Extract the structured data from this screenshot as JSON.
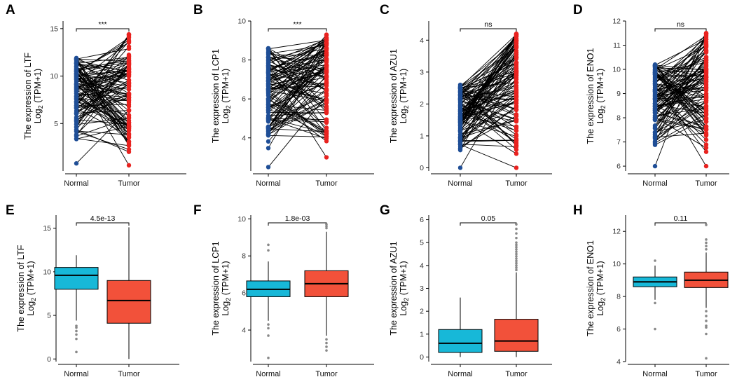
{
  "colors": {
    "normal_dot": "#1f4e96",
    "tumor_dot": "#e8221f",
    "normal_box": "#17b8d8",
    "tumor_box": "#f2513a",
    "outlier": "#888888",
    "line": "#000000"
  },
  "chart_data": [
    {
      "panel": "A",
      "type": "paired-dot",
      "gene": "LTF",
      "ylabel_main": "The expression of LTF",
      "ylabel_sub_pre": "Log",
      "ylabel_sub_base": "2",
      "ylabel_sub_post": " (TPM+1)",
      "categories": [
        "Normal",
        "Tumor"
      ],
      "ylim": [
        0,
        15.8
      ],
      "yticks": [
        5,
        10,
        15
      ],
      "significance": "***",
      "normal_range": [
        0.8,
        11.9
      ],
      "tumor_range": [
        0.6,
        14.4
      ],
      "n_pairs": 110,
      "seed": 11
    },
    {
      "panel": "B",
      "type": "paired-dot",
      "gene": "LCP1",
      "ylabel_main": "The expression of LCP1",
      "ylabel_sub_pre": "Log",
      "ylabel_sub_base": "2",
      "ylabel_sub_post": " (TPM+1)",
      "categories": [
        "Normal",
        "Tumor"
      ],
      "ylim": [
        2.3,
        10
      ],
      "yticks": [
        4,
        6,
        8,
        10
      ],
      "significance": "***",
      "normal_range": [
        2.5,
        8.6
      ],
      "tumor_range": [
        3.0,
        9.3
      ],
      "n_pairs": 110,
      "seed": 23
    },
    {
      "panel": "C",
      "type": "paired-dot",
      "gene": "AZU1",
      "ylabel_main": "The expression of AZU1",
      "ylabel_sub_pre": "Log",
      "ylabel_sub_base": "2",
      "ylabel_sub_post": " (TPM+1)",
      "categories": [
        "Normal",
        "Tumor"
      ],
      "ylim": [
        -0.1,
        4.6
      ],
      "yticks": [
        0,
        1,
        2,
        3,
        4
      ],
      "significance": "ns",
      "normal_range": [
        0.0,
        2.6
      ],
      "tumor_range": [
        0.0,
        4.2
      ],
      "n_pairs": 110,
      "seed": 37
    },
    {
      "panel": "D",
      "type": "paired-dot",
      "gene": "ENO1",
      "ylabel_main": "The expression of ENO1",
      "ylabel_sub_pre": "Log",
      "ylabel_sub_base": "2",
      "ylabel_sub_post": " (TPM+1)",
      "categories": [
        "Normal",
        "Tumor"
      ],
      "ylim": [
        5.8,
        12
      ],
      "yticks": [
        6,
        7,
        8,
        9,
        10,
        11,
        12
      ],
      "significance": "ns",
      "normal_range": [
        6.0,
        10.2
      ],
      "tumor_range": [
        6.0,
        11.5
      ],
      "n_pairs": 110,
      "seed": 41
    },
    {
      "panel": "E",
      "type": "box",
      "gene": "LTF",
      "ylabel_main": "The expression of LTF",
      "ylabel_sub_pre": "Log",
      "ylabel_sub_base": "2",
      "ylabel_sub_post": " (TPM+1)",
      "categories": [
        "Normal",
        "Tumor"
      ],
      "ylim": [
        -0.3,
        16.5
      ],
      "yticks": [
        0,
        5,
        10,
        15
      ],
      "significance": "4.5e-13",
      "boxes": [
        {
          "q1": 8.0,
          "median": 9.6,
          "q3": 10.5,
          "whisker_low": 4.4,
          "whisker_high": 11.9,
          "outliers": [
            3.8,
            3.6,
            3.2,
            2.8,
            2.3,
            0.8
          ]
        },
        {
          "q1": 4.1,
          "median": 6.7,
          "q3": 9.0,
          "whisker_low": 0.0,
          "whisker_high": 15.1,
          "outliers": []
        }
      ]
    },
    {
      "panel": "F",
      "type": "box",
      "gene": "LCP1",
      "ylabel_main": "The expression of LCP1",
      "ylabel_sub_pre": "Log",
      "ylabel_sub_base": "2",
      "ylabel_sub_post": " (TPM+1)",
      "categories": [
        "Normal",
        "Tumor"
      ],
      "ylim": [
        2.3,
        10.2
      ],
      "yticks": [
        4,
        6,
        8,
        10
      ],
      "significance": "1.8e-03",
      "boxes": [
        {
          "q1": 5.8,
          "median": 6.2,
          "q3": 6.65,
          "whisker_low": 4.5,
          "whisker_high": 7.7,
          "outliers": [
            8.6,
            8.3,
            4.3,
            4.1,
            3.7,
            2.5
          ]
        },
        {
          "q1": 5.8,
          "median": 6.5,
          "q3": 7.2,
          "whisker_low": 3.7,
          "whisker_high": 9.3,
          "outliers": [
            9.5,
            9.6,
            9.7,
            3.5,
            3.3,
            3.1,
            2.9
          ]
        }
      ]
    },
    {
      "panel": "G",
      "type": "box",
      "gene": "AZU1",
      "ylabel_main": "The expression of AZU1",
      "ylabel_sub_pre": "Log",
      "ylabel_sub_base": "2",
      "ylabel_sub_post": " (TPM+1)",
      "categories": [
        "Normal",
        "Tumor"
      ],
      "ylim": [
        -0.2,
        6.2
      ],
      "yticks": [
        0,
        1,
        2,
        3,
        4,
        5,
        6
      ],
      "significance": "0.05",
      "boxes": [
        {
          "q1": 0.2,
          "median": 0.6,
          "q3": 1.2,
          "whisker_low": 0.0,
          "whisker_high": 2.6,
          "outliers": []
        },
        {
          "q1": 0.25,
          "median": 0.7,
          "q3": 1.65,
          "whisker_low": 0.0,
          "whisker_high": 3.7,
          "outliers": [
            3.8,
            3.9,
            4.0,
            4.1,
            4.2,
            4.3,
            4.4,
            4.5,
            4.6,
            4.7,
            4.8,
            4.9,
            5.0,
            5.2,
            5.4,
            5.6,
            5.8
          ]
        }
      ]
    },
    {
      "panel": "H",
      "type": "box",
      "gene": "ENO1",
      "ylabel_main": "The expression of ENO1",
      "ylabel_sub_pre": "Log",
      "ylabel_sub_base": "2",
      "ylabel_sub_post": " (TPM+1)",
      "categories": [
        "Normal",
        "Tumor"
      ],
      "ylim": [
        4,
        13
      ],
      "yticks": [
        4,
        6,
        8,
        10,
        12
      ],
      "significance": "0.11",
      "boxes": [
        {
          "q1": 8.6,
          "median": 8.9,
          "q3": 9.2,
          "whisker_low": 7.8,
          "whisker_high": 9.9,
          "outliers": [
            10.2,
            7.6,
            6.0
          ]
        },
        {
          "q1": 8.55,
          "median": 9.0,
          "q3": 9.5,
          "whisker_low": 7.3,
          "whisker_high": 10.7,
          "outliers": [
            12.4,
            11.5,
            11.3,
            11.1,
            10.9,
            7.1,
            6.8,
            6.5,
            6.2,
            6.1,
            5.7,
            4.2
          ]
        }
      ]
    }
  ]
}
